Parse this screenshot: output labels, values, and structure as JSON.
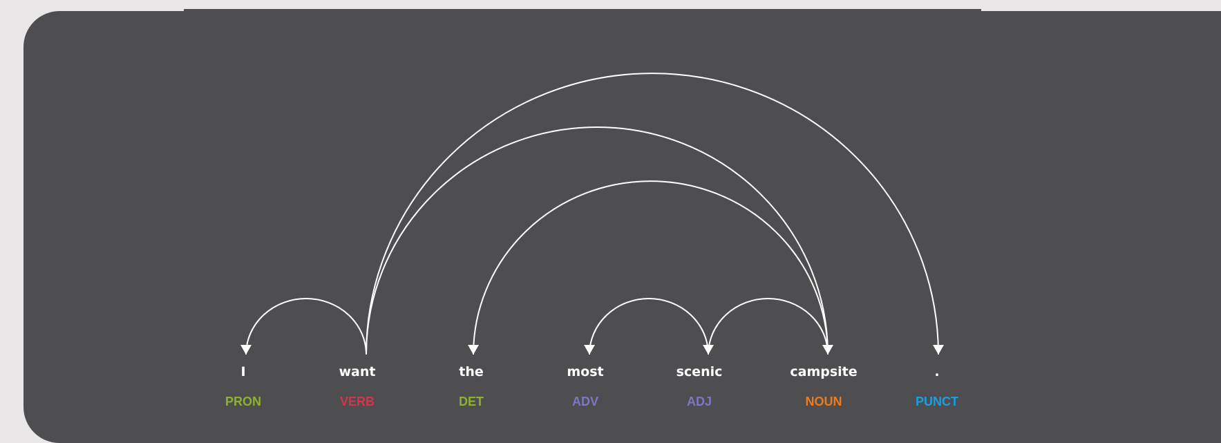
{
  "tokens": [
    {
      "text": "I",
      "tag": "PRON",
      "color": "#8eb22e"
    },
    {
      "text": "want",
      "tag": "VERB",
      "color": "#d2364f"
    },
    {
      "text": "the",
      "tag": "DET",
      "color": "#8eb22e"
    },
    {
      "text": "most",
      "tag": "ADV",
      "color": "#7b78c1"
    },
    {
      "text": "scenic",
      "tag": "ADJ",
      "color": "#7b78c1"
    },
    {
      "text": "campsite",
      "tag": "NOUN",
      "color": "#ee7a1c"
    },
    {
      "text": ".",
      "tag": "PUNCT",
      "color": "#1d9fdd"
    }
  ],
  "arcs": [
    {
      "head": 1,
      "dep": 0
    },
    {
      "head": 4,
      "dep": 3
    },
    {
      "head": 5,
      "dep": 4
    },
    {
      "head": 5,
      "dep": 2
    },
    {
      "head": 1,
      "dep": 5
    },
    {
      "head": 1,
      "dep": 6
    }
  ],
  "colors": {
    "background": "#4e4e50",
    "page": "#e9e7e7",
    "arc": "#ffffff",
    "word": "#ffffff"
  }
}
